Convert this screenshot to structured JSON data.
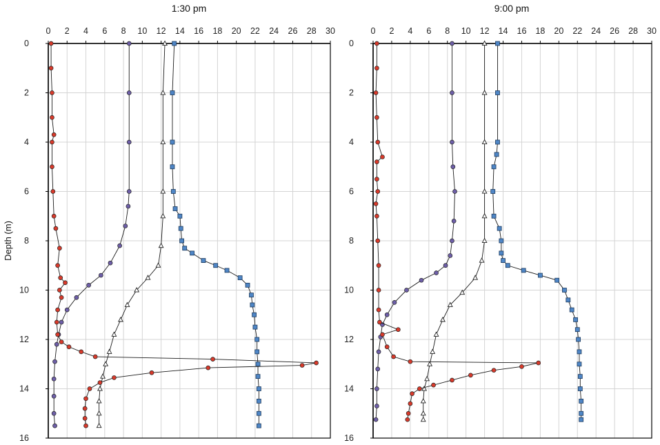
{
  "chart_data": [
    {
      "type": "scatter",
      "title": "1:30 pm",
      "xlabel": "",
      "ylabel": "Depth (m)",
      "xlim": [
        0,
        30
      ],
      "ylim": [
        16,
        0
      ],
      "x_ticks": [
        "0",
        "2",
        "4",
        "6",
        "8",
        "10",
        "12",
        "14",
        "16",
        "18",
        "20",
        "22",
        "24",
        "26",
        "28",
        "30"
      ],
      "y_ticks": [
        "0",
        "2",
        "4",
        "6",
        "8",
        "10",
        "12",
        "14",
        "16"
      ],
      "x_axis_position": "top",
      "grid": true,
      "series": [
        {
          "color": "#6E5FA8",
          "marker": "circle",
          "line": true,
          "points": [
            [
              8.6,
              0
            ],
            [
              8.6,
              2
            ],
            [
              8.6,
              4
            ],
            [
              8.6,
              6
            ],
            [
              8.5,
              6.6
            ],
            [
              8.2,
              7.4
            ],
            [
              7.6,
              8.2
            ],
            [
              6.6,
              8.9
            ],
            [
              5.6,
              9.4
            ],
            [
              4.3,
              9.8
            ],
            [
              3.0,
              10.3
            ],
            [
              2.0,
              10.8
            ],
            [
              1.4,
              11.3
            ],
            [
              1.1,
              11.8
            ],
            [
              0.9,
              12.2
            ],
            [
              0.7,
              12.9
            ],
            [
              0.6,
              13.6
            ],
            [
              0.6,
              14.3
            ],
            [
              0.6,
              15.0
            ],
            [
              0.7,
              15.5
            ]
          ]
        },
        {
          "color": "#222222",
          "marker": "triangle",
          "line": true,
          "points": [
            [
              12.4,
              0
            ],
            [
              12.2,
              2
            ],
            [
              12.2,
              4
            ],
            [
              12.2,
              6
            ],
            [
              12.2,
              7.0
            ],
            [
              12.0,
              8.2
            ],
            [
              11.7,
              9.0
            ],
            [
              10.6,
              9.5
            ],
            [
              9.4,
              10.0
            ],
            [
              8.4,
              10.6
            ],
            [
              7.7,
              11.2
            ],
            [
              7.0,
              11.8
            ],
            [
              6.5,
              12.5
            ],
            [
              6.1,
              13.0
            ],
            [
              5.8,
              13.5
            ],
            [
              5.5,
              14.0
            ],
            [
              5.4,
              14.5
            ],
            [
              5.4,
              15.0
            ],
            [
              5.4,
              15.5
            ]
          ]
        },
        {
          "color": "#4F86C6",
          "marker": "square",
          "line": true,
          "points": [
            [
              13.4,
              0
            ],
            [
              13.2,
              2
            ],
            [
              13.2,
              4
            ],
            [
              13.2,
              5
            ],
            [
              13.3,
              6.0
            ],
            [
              13.5,
              6.7
            ],
            [
              14.0,
              7.0
            ],
            [
              14.1,
              7.5
            ],
            [
              14.2,
              8.0
            ],
            [
              14.5,
              8.3
            ],
            [
              15.3,
              8.5
            ],
            [
              16.5,
              8.8
            ],
            [
              17.8,
              9.0
            ],
            [
              19.0,
              9.2
            ],
            [
              20.4,
              9.5
            ],
            [
              21.2,
              9.8
            ],
            [
              21.6,
              10.2
            ],
            [
              21.7,
              10.6
            ],
            [
              21.9,
              11.0
            ],
            [
              22.0,
              11.5
            ],
            [
              22.2,
              12.0
            ],
            [
              22.2,
              12.5
            ],
            [
              22.3,
              13.0
            ],
            [
              22.3,
              13.5
            ],
            [
              22.4,
              14.0
            ],
            [
              22.4,
              14.5
            ],
            [
              22.4,
              15.0
            ],
            [
              22.4,
              15.5
            ]
          ]
        },
        {
          "color": "#D83A2B",
          "marker": "circle",
          "line": true,
          "points": [
            [
              0.3,
              0
            ],
            [
              0.3,
              1
            ],
            [
              0.4,
              2
            ],
            [
              0.4,
              3
            ],
            [
              0.6,
              3.7
            ],
            [
              0.4,
              4
            ],
            [
              0.4,
              5
            ],
            [
              0.5,
              6
            ],
            [
              0.6,
              7
            ],
            [
              0.8,
              7.5
            ],
            [
              1.2,
              8.3
            ],
            [
              1.0,
              9.0
            ],
            [
              1.3,
              9.5
            ],
            [
              1.8,
              9.7
            ],
            [
              1.2,
              10.0
            ],
            [
              1.4,
              10.3
            ],
            [
              1.0,
              10.8
            ],
            [
              0.9,
              11.3
            ],
            [
              1.0,
              11.8
            ],
            [
              1.4,
              12.1
            ],
            [
              2.2,
              12.3
            ],
            [
              3.5,
              12.5
            ],
            [
              5.0,
              12.7
            ],
            [
              17.5,
              12.8
            ],
            [
              28.5,
              12.95
            ],
            [
              27.0,
              13.05
            ],
            [
              17.0,
              13.15
            ],
            [
              11.0,
              13.35
            ],
            [
              7.0,
              13.55
            ],
            [
              5.5,
              13.75
            ],
            [
              4.4,
              14.0
            ],
            [
              4.0,
              14.4
            ],
            [
              3.9,
              14.8
            ],
            [
              3.9,
              15.2
            ],
            [
              4.0,
              15.5
            ]
          ]
        }
      ]
    },
    {
      "type": "scatter",
      "title": "9:00 pm",
      "xlabel": "",
      "ylabel": "",
      "xlim": [
        0,
        30
      ],
      "ylim": [
        16,
        0
      ],
      "x_ticks": [
        "0",
        "2",
        "4",
        "6",
        "8",
        "10",
        "12",
        "14",
        "16",
        "18",
        "20",
        "22",
        "24",
        "26",
        "28",
        "30"
      ],
      "y_ticks": [
        "0",
        "2",
        "4",
        "6",
        "8",
        "10",
        "12",
        "14",
        "16"
      ],
      "x_axis_position": "top",
      "grid": true,
      "series": [
        {
          "color": "#6E5FA8",
          "marker": "circle",
          "line": true,
          "points": [
            [
              8.5,
              0
            ],
            [
              8.5,
              2
            ],
            [
              8.5,
              4
            ],
            [
              8.6,
              5
            ],
            [
              8.8,
              6
            ],
            [
              8.7,
              7.2
            ],
            [
              8.5,
              8.0
            ],
            [
              8.3,
              8.6
            ],
            [
              7.8,
              9.0
            ],
            [
              6.8,
              9.3
            ],
            [
              5.2,
              9.6
            ],
            [
              3.6,
              10.0
            ],
            [
              2.3,
              10.5
            ],
            [
              1.5,
              11.0
            ],
            [
              1.0,
              11.4
            ],
            [
              0.8,
              11.9
            ],
            [
              0.6,
              12.5
            ],
            [
              0.5,
              13.2
            ],
            [
              0.4,
              14.0
            ],
            [
              0.4,
              14.7
            ],
            [
              0.3,
              15.25
            ]
          ]
        },
        {
          "color": "#222222",
          "marker": "triangle",
          "line": true,
          "points": [
            [
              12.0,
              0
            ],
            [
              12.0,
              2
            ],
            [
              12.0,
              4
            ],
            [
              12.0,
              6
            ],
            [
              12.0,
              7.0
            ],
            [
              12.0,
              8.0
            ],
            [
              11.7,
              8.8
            ],
            [
              11.0,
              9.5
            ],
            [
              9.6,
              10.1
            ],
            [
              8.3,
              10.6
            ],
            [
              7.5,
              11.2
            ],
            [
              6.8,
              11.8
            ],
            [
              6.4,
              12.5
            ],
            [
              6.1,
              13.0
            ],
            [
              5.8,
              13.6
            ],
            [
              5.5,
              14.0
            ],
            [
              5.4,
              14.5
            ],
            [
              5.4,
              15.0
            ],
            [
              5.4,
              15.25
            ]
          ]
        },
        {
          "color": "#4F86C6",
          "marker": "square",
          "line": true,
          "points": [
            [
              13.4,
              0
            ],
            [
              13.4,
              2
            ],
            [
              13.4,
              4
            ],
            [
              13.3,
              4.5
            ],
            [
              13.0,
              5.0
            ],
            [
              12.9,
              6.0
            ],
            [
              13.0,
              7.0
            ],
            [
              13.6,
              7.5
            ],
            [
              13.8,
              8.0
            ],
            [
              13.8,
              8.5
            ],
            [
              14.0,
              8.8
            ],
            [
              14.5,
              9.0
            ],
            [
              16.2,
              9.2
            ],
            [
              18.0,
              9.4
            ],
            [
              19.8,
              9.6
            ],
            [
              20.6,
              10.0
            ],
            [
              21.0,
              10.4
            ],
            [
              21.4,
              10.8
            ],
            [
              21.8,
              11.2
            ],
            [
              22.0,
              11.6
            ],
            [
              22.1,
              12.0
            ],
            [
              22.2,
              12.5
            ],
            [
              22.2,
              13.0
            ],
            [
              22.3,
              13.5
            ],
            [
              22.3,
              14.0
            ],
            [
              22.4,
              14.5
            ],
            [
              22.4,
              15.0
            ],
            [
              22.4,
              15.25
            ]
          ]
        },
        {
          "color": "#D83A2B",
          "marker": "circle",
          "line": true,
          "points": [
            [
              0.4,
              0
            ],
            [
              0.4,
              1
            ],
            [
              0.3,
              2
            ],
            [
              0.4,
              3
            ],
            [
              0.5,
              4
            ],
            [
              1.0,
              4.6
            ],
            [
              0.4,
              4.8
            ],
            [
              0.4,
              5.5
            ],
            [
              0.5,
              6.0
            ],
            [
              0.3,
              6.5
            ],
            [
              0.4,
              7.0
            ],
            [
              0.5,
              8.0
            ],
            [
              0.6,
              9.0
            ],
            [
              0.6,
              10.0
            ],
            [
              0.6,
              10.8
            ],
            [
              0.7,
              11.3
            ],
            [
              2.7,
              11.6
            ],
            [
              1.0,
              11.8
            ],
            [
              1.5,
              12.3
            ],
            [
              2.2,
              12.7
            ],
            [
              4.0,
              12.9
            ],
            [
              17.8,
              12.95
            ],
            [
              16.0,
              13.1
            ],
            [
              13.0,
              13.25
            ],
            [
              10.5,
              13.45
            ],
            [
              8.5,
              13.65
            ],
            [
              6.5,
              13.85
            ],
            [
              5.0,
              14.0
            ],
            [
              4.2,
              14.2
            ],
            [
              4.0,
              14.6
            ],
            [
              3.8,
              15.0
            ],
            [
              3.7,
              15.25
            ]
          ]
        }
      ]
    }
  ]
}
